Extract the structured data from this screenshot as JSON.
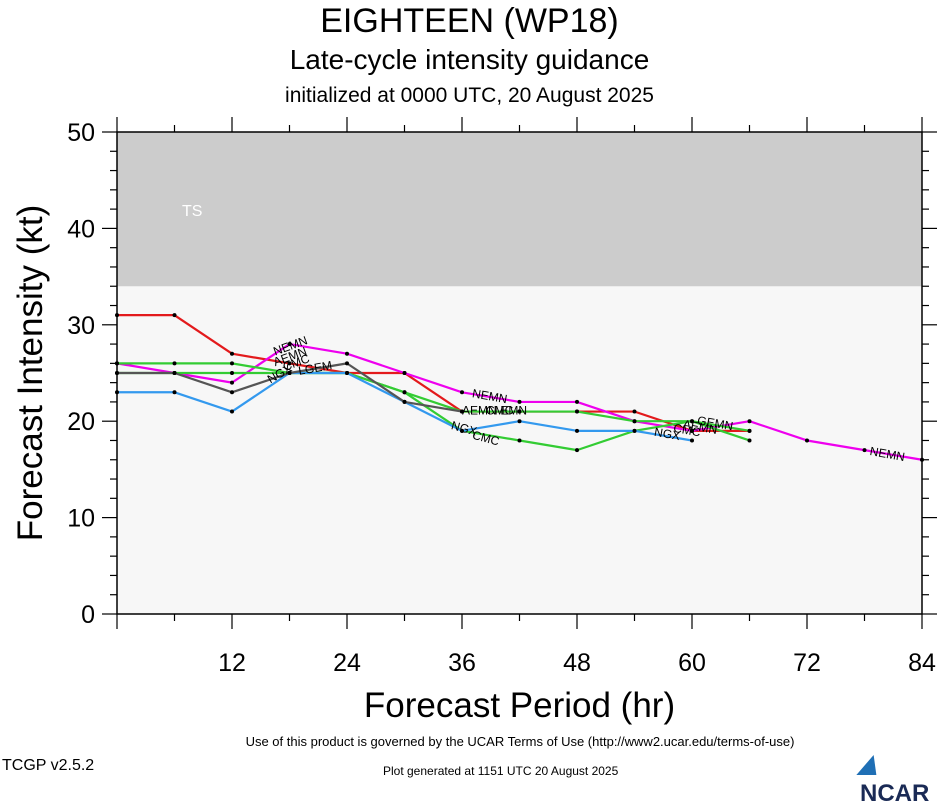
{
  "header": {
    "title": "EIGHTEEN (WP18)",
    "subtitle": "Late-cycle intensity guidance",
    "init_line": "initialized at 0000 UTC, 20 August 2025"
  },
  "footer": {
    "terms": "Use of this product is governed by the UCAR Terms of Use (http://www2.ucar.edu/terms-of-use)",
    "version": "TCGP v2.5.2",
    "generated": "Plot generated at 1151 UTC   20 August 2025",
    "logo_text": "NCAR"
  },
  "colors": {
    "red": "#e31a1c",
    "magenta": "#ee00ee",
    "green": "#33cc33",
    "blue": "#3399ee",
    "gray": "#555555"
  },
  "chart_data": {
    "type": "line",
    "xlabel": "Forecast Period (hr)",
    "ylabel": "Forecast Intensity (kt)",
    "xlim": [
      0,
      84
    ],
    "ylim": [
      0,
      50
    ],
    "xticks": [
      12,
      24,
      36,
      48,
      60,
      72,
      84
    ],
    "yticks": [
      0,
      10,
      20,
      30,
      40,
      50
    ],
    "bands": [
      {
        "label": "TS",
        "ymin": 34,
        "ymax": 50,
        "color": "#cccccc"
      }
    ],
    "plot_background": "#f7f7f7",
    "series": [
      {
        "color": "#e31a1c",
        "x": [
          0,
          6,
          12,
          18,
          24,
          30,
          36,
          42,
          48,
          54,
          60,
          66
        ],
        "y": [
          31,
          31,
          27,
          26,
          25,
          25,
          21,
          21,
          21,
          21,
          19,
          19
        ]
      },
      {
        "name": "NEMN",
        "color": "#ee00ee",
        "x": [
          0,
          6,
          12,
          18,
          24,
          30,
          36,
          42,
          48,
          54,
          60,
          66,
          72,
          78,
          84
        ],
        "y": [
          26,
          25,
          24,
          28,
          27,
          25,
          23,
          22,
          22,
          20,
          19,
          20,
          18,
          17,
          16
        ]
      },
      {
        "name": "CMC",
        "color": "#33cc33",
        "x": [
          0,
          6,
          12,
          18,
          24,
          30,
          36,
          42,
          48,
          54,
          60,
          66
        ],
        "y": [
          26,
          26,
          26,
          25,
          25,
          23,
          19,
          18,
          17,
          19,
          20,
          18
        ]
      },
      {
        "color": "#33cc33",
        "x": [
          0,
          6,
          12,
          18,
          24,
          30,
          36,
          42,
          48,
          54,
          60,
          66
        ],
        "y": [
          25,
          25,
          25,
          25,
          25,
          23,
          21,
          21,
          21,
          20,
          20,
          19
        ]
      },
      {
        "name": "NGX",
        "color": "#3399ee",
        "x": [
          0,
          6,
          12,
          18,
          24,
          30,
          36,
          42,
          48,
          54,
          60
        ],
        "y": [
          23,
          23,
          21,
          25,
          25,
          22,
          19,
          20,
          19,
          19,
          18
        ]
      },
      {
        "color": "#555555",
        "x": [
          0,
          6,
          12,
          18,
          24,
          30,
          36
        ],
        "y": [
          25,
          25,
          23,
          25,
          26,
          22,
          21
        ]
      }
    ],
    "annotations": [
      {
        "text": "NEMN",
        "x": 16.5,
        "y": 26.8,
        "rotate": -20
      },
      {
        "text": "AEMN",
        "x": 16.5,
        "y": 25.7,
        "rotate": -20
      },
      {
        "text": "CMC",
        "x": 17.5,
        "y": 25.2,
        "rotate": -20
      },
      {
        "text": "NGX",
        "x": 16.0,
        "y": 23.9,
        "rotate": -30
      },
      {
        "text": "LGEM",
        "x": 19.0,
        "y": 24.8,
        "rotate": -10
      },
      {
        "text": "NEMN",
        "x": 37.0,
        "y": 22.5,
        "rotate": 10
      },
      {
        "text": "AEMN",
        "x": 36.0,
        "y": 20.7,
        "rotate": 0
      },
      {
        "text": "CMC",
        "x": 38.5,
        "y": 20.7,
        "rotate": 0
      },
      {
        "text": "EMN",
        "x": 40.0,
        "y": 20.7,
        "rotate": 0
      },
      {
        "text": "NGX",
        "x": 34.8,
        "y": 19.2,
        "rotate": 15
      },
      {
        "text": "CMC",
        "x": 37.0,
        "y": 18.2,
        "rotate": 15
      },
      {
        "text": "NGX",
        "x": 56.0,
        "y": 18.5,
        "rotate": 10
      },
      {
        "text": "CMC",
        "x": 58.0,
        "y": 18.9,
        "rotate": 10
      },
      {
        "text": "AEMN",
        "x": 59.0,
        "y": 19.3,
        "rotate": 10
      },
      {
        "text": "GEMN",
        "x": 60.5,
        "y": 19.7,
        "rotate": 10
      },
      {
        "text": "NEMN",
        "x": 78.5,
        "y": 16.5,
        "rotate": 10
      }
    ]
  }
}
